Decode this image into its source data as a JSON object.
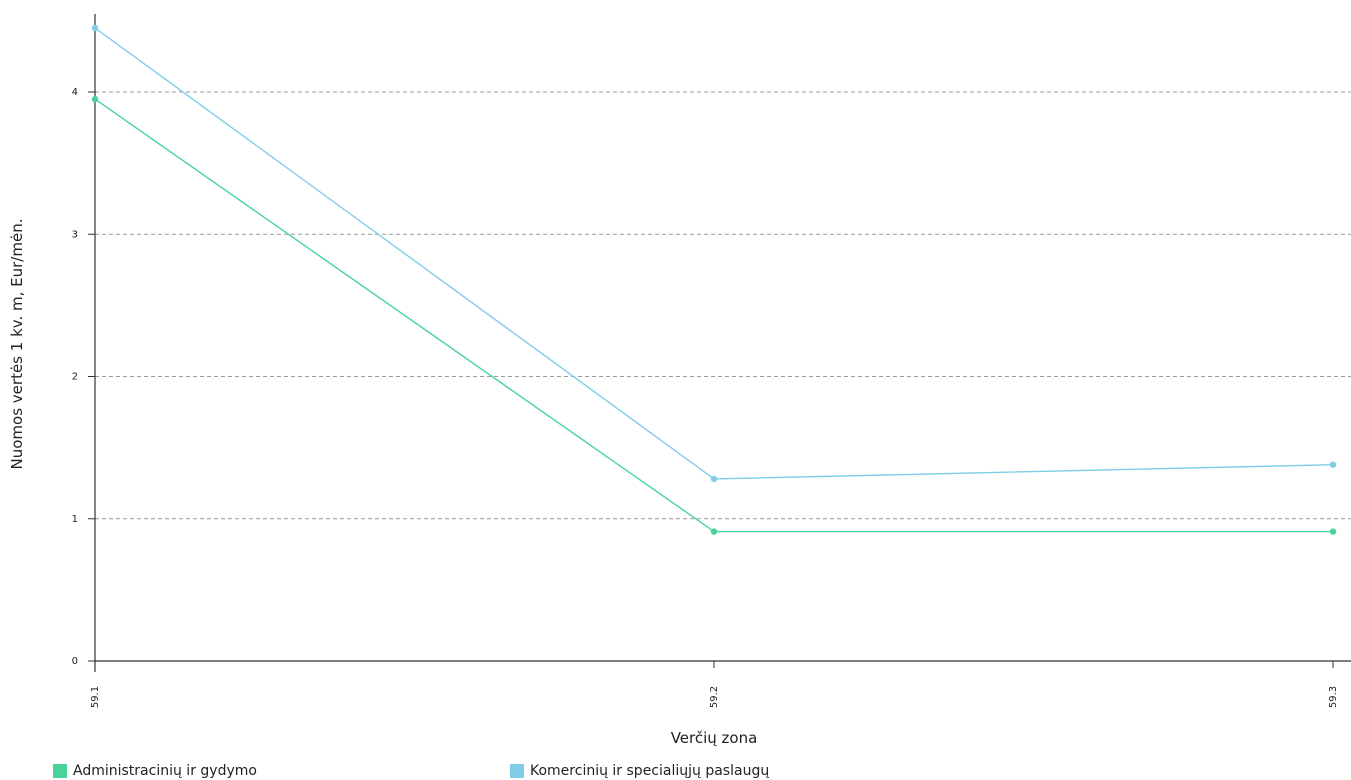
{
  "chart_data": {
    "type": "line",
    "x": [
      "59.1",
      "59.2",
      "59.3"
    ],
    "xlabel": "Verčių zona",
    "ylabel": "Nuomos vertės 1 kv. m, Eur/mėn.",
    "ylim": [
      0,
      4.5
    ],
    "yticks": [
      "0",
      "1",
      "2",
      "3",
      "4"
    ],
    "grid": true,
    "legend_position": "bottom",
    "series": [
      {
        "name": "Administracinių ir gydymo",
        "values": [
          3.95,
          0.91,
          0.91
        ],
        "color": "#48d39a"
      },
      {
        "name": "Komercinių ir specialiųjų paslaugų",
        "values": [
          4.45,
          1.28,
          1.38
        ],
        "color": "#7fcde9"
      }
    ]
  }
}
